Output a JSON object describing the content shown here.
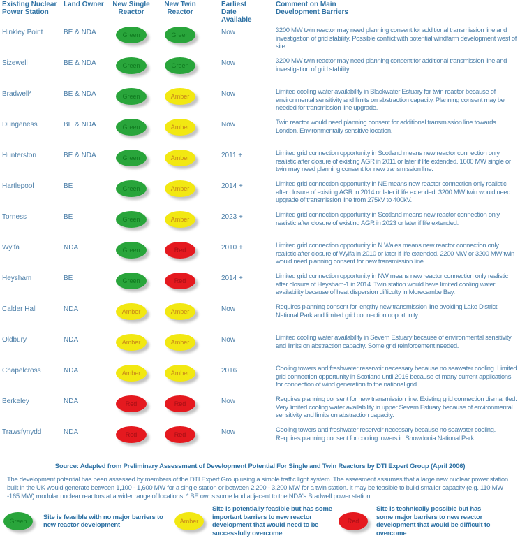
{
  "colors": {
    "text_blue": "#4a7da7",
    "heading_blue": "#2f72a4",
    "green": "#29a53b",
    "amber": "#f2e812",
    "red": "#e5191f"
  },
  "table": {
    "headers": [
      "Existing Nuclear Power Station",
      "Land Owner",
      "New Single Reactor",
      "New Twin Reactor",
      "Earliest Date Available",
      "Comment on Main Development Barriers"
    ],
    "rows": [
      {
        "station": "Hinkley Point",
        "owner": "BE & NDA",
        "single": "Green",
        "twin": "Green",
        "date": "Now",
        "comment": "3200 MW twin reactor may need planning consent for additional transmission line and investigation of grid stability. Possible conflict with potential windfarm development west of site."
      },
      {
        "station": "Sizewell",
        "owner": "BE & NDA",
        "single": "Green",
        "twin": "Green",
        "date": "Now",
        "comment": "3200 MW twin reactor may need planning consent for additional transmission line and investigation of grid stability."
      },
      {
        "station": "Bradwell*",
        "owner": "BE & NDA",
        "single": "Green",
        "twin": "Amber",
        "date": "Now",
        "comment": "Limited cooling water availability in Blackwater Estuary for twin reactor because of environmental sensitivity and limits on abstraction capacity. Planning consent may be needed for transmission line upgrade."
      },
      {
        "station": "Dungeness",
        "owner": "BE & NDA",
        "single": "Green",
        "twin": "Amber",
        "date": "Now",
        "comment": "Twin reactor would need planning consent for additional transmission line towards London. Environmentally sensitive location."
      },
      {
        "station": "Hunterston",
        "owner": "BE & NDA",
        "single": "Green",
        "twin": "Amber",
        "date": "2011 +",
        "comment": "Limited grid connection opportunity in Scotland means new reactor connection only realistic after closure of existing AGR in 2011 or later if life extended. 1600 MW single or twin may need planning consent for new transmission line."
      },
      {
        "station": "Hartlepool",
        "owner": "BE",
        "single": "Green",
        "twin": "Amber",
        "date": "2014 +",
        "comment": "Limited grid connection opportunity in NE means new reactor connection only realistic after closure of existing AGR in 2014 or later if life extended. 3200 MW twin would need upgrade of transmission line from 275kV to 400kV."
      },
      {
        "station": "Torness",
        "owner": "BE",
        "single": "Green",
        "twin": "Amber",
        "date": "2023 +",
        "comment": "Limited grid connection opportunity in Scotland means new reactor connection only realistic after closure of existing AGR in 2023 or later if life extended."
      },
      {
        "station": "Wylfa",
        "owner": "NDA",
        "single": "Green",
        "twin": "Red",
        "date": "2010 +",
        "comment": "Limited grid connection opportunity in N Wales means new reactor connection only realistic after closure of Wylfa in 2010 or later if life extended. 2200 MW or 3200 MW twin would need planning consent for new transmission line."
      },
      {
        "station": "Heysham",
        "owner": "BE",
        "single": "Green",
        "twin": "Red",
        "date": "2014 +",
        "comment": "Limited grid connection opportunity in NW means new reactor connection only realistic after closure of Heysham-1 in 2014. Twin station would have limited cooling water availability because of heat dispersion difficulty in Morecambe Bay."
      },
      {
        "station": "Calder Hall",
        "owner": "NDA",
        "single": "Amber",
        "twin": "Amber",
        "date": "Now",
        "comment": "Requires planning consent for lengthy new transmission line avoiding Lake District National Park and limited grid connection opportunity."
      },
      {
        "station": "Oldbury",
        "owner": "NDA",
        "single": "Amber",
        "twin": "Amber",
        "date": "Now",
        "comment": "Limited cooling water availability in Severn Estuary because of environmental sensitivity and limits on abstraction capacity. Some grid reinforcement needed."
      },
      {
        "station": "Chapelcross",
        "owner": "NDA",
        "single": "Amber",
        "twin": "Amber",
        "date": "2016",
        "comment": "Cooling towers and freshwater reservoir necessary because no seawater cooling. Limited grid connection opportunity in Scotland until 2016 because of many current applications for connection of wind generation to the national grid."
      },
      {
        "station": "Berkeley",
        "owner": "NDA",
        "single": "Red",
        "twin": "Red",
        "date": "Now",
        "comment": "Requires planning consent for new transmission line. Existing grid connection dismantled. Very limited cooling water availability in upper Severn Estuary because of environmental sensitivity and limits on abstraction capacity."
      },
      {
        "station": "Trawsfynydd",
        "owner": "NDA",
        "single": "Red",
        "twin": "Red",
        "date": "Now",
        "comment": "Cooling towers and freshwater reservoir necessary because no seawater cooling. Requires planning consent for cooling towers in Snowdonia National Park."
      }
    ]
  },
  "source": "Source: Adapted from Preliminary Assessment of Development Potential For Single and Twin Reactors by DTI Expert Group (April 2006)",
  "notes": "The development potential has been assessed by members of the DTI Expert Group using a simple traffic light system. The assesment assumes that a large new nuclear power station built in the UK would generate between 1,100 - 1,600 MW for a single station or between 2,200 - 3,200 MW for a twin station. It may be feasible to build smaller capacity (e.g. 110 MW -165 MW) modular nuclear reactors at a wider range of locations. * BE owns some land adjacent to the NDA's Bradwell power station.",
  "legend": [
    {
      "status": "Green",
      "text": "Site is feasible with no major barriers to new reactor development"
    },
    {
      "status": "Amber",
      "text": "Site is potentially feasible but has some important barriers to new reactor development that would need to be successfully overcome"
    },
    {
      "status": "Red",
      "text": "Site is technically possible but has some major barriers to new reactor development that would be difficult to overcome"
    }
  ]
}
